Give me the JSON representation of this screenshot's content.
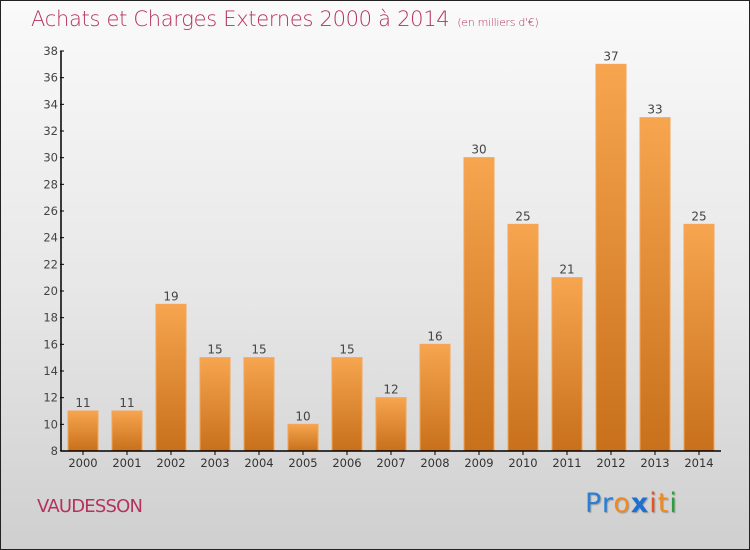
{
  "header": {
    "title": "Achats et Charges Externes 2000 à 2014",
    "subtitle": "(en milliers d'€)"
  },
  "footer": {
    "commune": "VAUDESSON",
    "logo": {
      "letters": [
        {
          "char": "P",
          "color": "#2a7fd4"
        },
        {
          "char": "r",
          "color": "#2a7fd4"
        },
        {
          "char": "o",
          "color": "#f08a1c"
        },
        {
          "char": "x",
          "color": "#1f6fd0"
        },
        {
          "char": "i",
          "color": "#e8521c"
        },
        {
          "char": "t",
          "color": "#f08a1c"
        },
        {
          "char": "i",
          "color": "#2aa03c"
        }
      ]
    }
  },
  "colors": {
    "bar_top": "#f7a54f",
    "bar_bottom": "#c8701c",
    "title": "#b5325f"
  },
  "chart_data": {
    "type": "bar",
    "title": "Achats et Charges Externes 2000 à 2014",
    "subtitle": "(en milliers d'€)",
    "xlabel": "",
    "ylabel": "",
    "categories": [
      "2000",
      "2001",
      "2002",
      "2003",
      "2004",
      "2005",
      "2006",
      "2007",
      "2008",
      "2009",
      "2010",
      "2011",
      "2012",
      "2013",
      "2014"
    ],
    "values": [
      11,
      11,
      19,
      15,
      15,
      10,
      15,
      12,
      16,
      30,
      25,
      21,
      37,
      33,
      25
    ],
    "data_labels": [
      "11",
      "11",
      "19",
      "15",
      "15",
      "10",
      "15",
      "12",
      "16",
      "30",
      "25",
      "21",
      "37",
      "33",
      "25"
    ],
    "ylim": [
      8,
      38
    ],
    "yticks": [
      8,
      10,
      12,
      14,
      16,
      18,
      20,
      22,
      24,
      26,
      28,
      30,
      32,
      34,
      36,
      38
    ],
    "grid": false,
    "legend": "none"
  }
}
